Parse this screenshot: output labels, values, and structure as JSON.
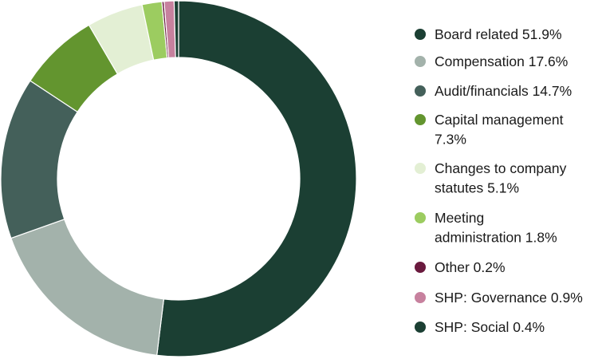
{
  "chart_data": {
    "type": "donut",
    "title": "",
    "legend_position": "right",
    "slices": [
      {
        "label": "Board related",
        "value": 51.9,
        "value_label": "51.9%",
        "color": "#1b3f33"
      },
      {
        "label": "Compensation",
        "value": 17.6,
        "value_label": "17.6%",
        "color": "#a3b2ab"
      },
      {
        "label": "Audit/financials",
        "value": 14.7,
        "value_label": "14.7%",
        "color": "#44605a"
      },
      {
        "label": "Capital management",
        "value": 7.3,
        "value_label": "7.3%",
        "color": "#63952f"
      },
      {
        "label": "Changes to company statutes",
        "value": 5.1,
        "value_label": "5.1%",
        "color": "#e3efd4"
      },
      {
        "label": "Meeting administration",
        "value": 1.8,
        "value_label": "1.8%",
        "color": "#9ccc60"
      },
      {
        "label": "Other",
        "value": 0.2,
        "value_label": "0.2%",
        "color": "#6a1a3e"
      },
      {
        "label": "SHP: Governance",
        "value": 0.9,
        "value_label": "0.9%",
        "color": "#c7819e"
      },
      {
        "label": "SHP: Social",
        "value": 0.4,
        "value_label": "0.4%",
        "color": "#1b3f33"
      }
    ]
  }
}
